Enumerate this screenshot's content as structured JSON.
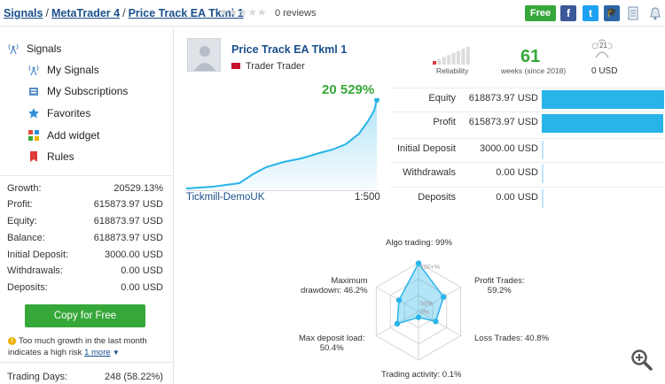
{
  "breadcrumb": {
    "signals": "Signals",
    "platform": "MetaTrader 4",
    "name": "Price Track EA Tkml 1"
  },
  "rating": {
    "stars": "★★★★★",
    "reviews": "0 reviews"
  },
  "header_actions": {
    "free": "Free",
    "facebook": "f",
    "twitter": "t",
    "education": "🎓"
  },
  "sidebar": {
    "title": "Signals",
    "items": [
      {
        "label": "My Signals"
      },
      {
        "label": "My Subscriptions"
      },
      {
        "label": "Favorites"
      },
      {
        "label": "Add widget"
      },
      {
        "label": "Rules"
      }
    ],
    "stats": [
      {
        "label": "Growth:",
        "value": "20529.13%"
      },
      {
        "label": "Profit:",
        "value": "615873.97 USD"
      },
      {
        "label": "Equity:",
        "value": "618873.97 USD"
      },
      {
        "label": "Balance:",
        "value": "618873.97 USD"
      },
      {
        "label": "Initial Deposit:",
        "value": "3000.00 USD"
      },
      {
        "label": "Withdrawals:",
        "value": "0.00 USD"
      },
      {
        "label": "Deposits:",
        "value": "0.00 USD"
      }
    ],
    "copy_button": "Copy for Free",
    "warning": "Too much growth in the last month indicates a high risk",
    "more": "1 more",
    "trading_days": {
      "label": "Trading Days:",
      "value": "248 (58.22%)"
    }
  },
  "provider": {
    "name": "Price Track EA Tkml 1",
    "owner": "Trader Trader"
  },
  "summary": {
    "growth": "20 529%",
    "broker": "Tickmill-DemoUK",
    "leverage": "1:500",
    "reliability_label": "Reliability",
    "reliability_level": 0.2,
    "weeks": "61",
    "weeks_label": "weeks (since 2018)",
    "subscribers": "21",
    "subscribers_usd": "0 USD"
  },
  "balance_stats": [
    {
      "label": "Equity",
      "value": "618873.97 USD",
      "fill": 1.0
    },
    {
      "label": "Profit",
      "value": "615873.97 USD",
      "fill": 0.995
    },
    {
      "label": "Initial Deposit",
      "value": "3000.00 USD",
      "fill": 0.0
    },
    {
      "label": "Withdrawals",
      "value": "0.00 USD",
      "fill": 0.0
    },
    {
      "label": "Deposits",
      "value": "0.00 USD",
      "fill": 0.0
    }
  ],
  "radar": {
    "labels": {
      "algo": "Algo trading: 99%",
      "profit": "Profit Trades:\n59.2%",
      "loss": "Loss Trades: 40.8%",
      "activity": "Trading activity: 0.1%",
      "deposit": "Max deposit load:\n50.4%",
      "drawdown": "Maximum\ndrawdown: 46.2%"
    },
    "scale": {
      "max": "100+%",
      "mid": "50%",
      "zero": "0%"
    },
    "values": [
      99,
      59.2,
      40.8,
      0.1,
      50.4,
      46.2
    ]
  },
  "colors": {
    "green": "#36a83a",
    "blue": "#28b4e8",
    "link": "#1a4f8a",
    "red": "#e03a3a"
  }
}
